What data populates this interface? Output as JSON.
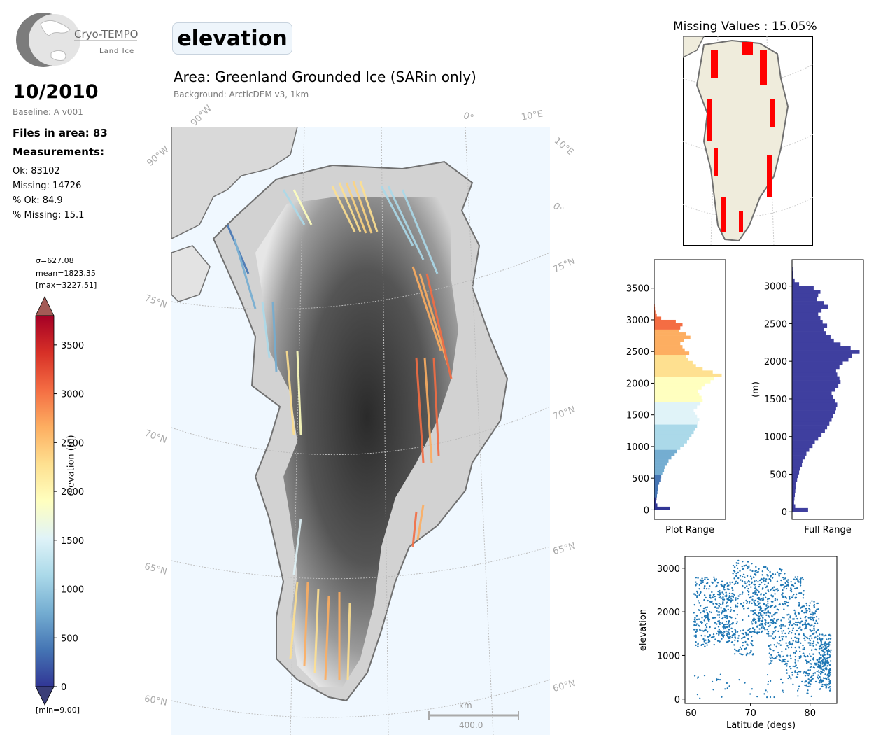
{
  "logo": {
    "name": "Cryo-TEMPO",
    "subtitle": "Land Ice"
  },
  "header": {
    "date": "10/2010",
    "baseline": "Baseline: A v001",
    "files": "Files in area: 83",
    "measurements_title": "Measurements:",
    "ok": "Ok: 83102",
    "missing": "Missing: 14726",
    "pct_ok": "% Ok: 84.9",
    "pct_missing": "% Missing: 15.1"
  },
  "main": {
    "parameter": "elevation",
    "area": "Area: Greenland Grounded Ice (SARin only)",
    "background": "Background: ArcticDEM v3, 1km",
    "scalebar": {
      "unit": "km",
      "length_label": "400.0"
    },
    "lat_labels": [
      "75°N",
      "70°N",
      "65°N",
      "60°N"
    ],
    "lon_labels_top": [
      "90°W",
      "0°",
      "10°E"
    ],
    "lon_labels_left": [
      "90°W"
    ],
    "lon_labels_right": [
      "10°E",
      "0°"
    ],
    "lat_labels_right": [
      "75°N",
      "70°N",
      "65°N",
      "60°N"
    ]
  },
  "colorbar": {
    "sigma": "σ=627.08",
    "mean": "mean=1823.35",
    "max": "[max=3227.51]",
    "min": "[min=9.00]",
    "label": "elevation (m)",
    "ticks": [
      "3500",
      "3000",
      "2500",
      "2000",
      "1500",
      "1000",
      "500",
      "0"
    ],
    "colors": [
      "#313695",
      "#4575b4",
      "#74add1",
      "#abd9e9",
      "#e0f3f8",
      "#ffffbf",
      "#fee090",
      "#fdae61",
      "#f46d43",
      "#d73027",
      "#a50026"
    ]
  },
  "inset": {
    "title": "Missing Values : 15.05%",
    "missing_color": "#ff0000",
    "land_color": "#efecdc"
  },
  "chart_data": [
    {
      "type": "bar",
      "orientation": "horizontal",
      "xlabel": "Plot Range",
      "ylabel": "",
      "ylim": [
        -150,
        3950
      ],
      "yticks": [
        0,
        500,
        1000,
        1500,
        2000,
        2500,
        3000,
        3500
      ],
      "bin_centers": [
        25,
        75,
        125,
        175,
        225,
        275,
        325,
        375,
        425,
        475,
        525,
        575,
        625,
        675,
        725,
        775,
        825,
        875,
        925,
        975,
        1025,
        1075,
        1125,
        1175,
        1225,
        1275,
        1325,
        1375,
        1425,
        1475,
        1525,
        1575,
        1625,
        1675,
        1725,
        1775,
        1825,
        1875,
        1925,
        1975,
        2025,
        2075,
        2125,
        2175,
        2225,
        2275,
        2325,
        2375,
        2425,
        2475,
        2525,
        2575,
        2625,
        2675,
        2725,
        2775,
        2825,
        2875,
        2925,
        2975,
        3025,
        3075,
        3125,
        3175,
        3225
      ],
      "counts": [
        1400,
        250,
        150,
        180,
        220,
        260,
        300,
        340,
        420,
        520,
        600,
        700,
        850,
        900,
        1100,
        1250,
        1500,
        1800,
        2000,
        2300,
        2600,
        2900,
        3100,
        3300,
        3500,
        3600,
        3800,
        3900,
        4000,
        3800,
        3600,
        3500,
        3800,
        4100,
        4300,
        4200,
        4000,
        3900,
        4200,
        4500,
        5000,
        5300,
        6000,
        5200,
        4300,
        3700,
        3400,
        3000,
        2800,
        3100,
        2700,
        2500,
        2300,
        2600,
        3200,
        2800,
        2200,
        2300,
        2500,
        1900,
        600,
        200,
        80,
        40,
        20
      ]
    },
    {
      "type": "bar",
      "orientation": "horizontal",
      "xlabel": "Full Range",
      "ylabel": "(m)",
      "ylim": [
        -100,
        3350
      ],
      "yticks": [
        0,
        500,
        1000,
        1500,
        2000,
        2500,
        3000
      ],
      "color": "#3f3f9f",
      "bin_centers": [
        25,
        75,
        125,
        175,
        225,
        275,
        325,
        375,
        425,
        475,
        525,
        575,
        625,
        675,
        725,
        775,
        825,
        875,
        925,
        975,
        1025,
        1075,
        1125,
        1175,
        1225,
        1275,
        1325,
        1375,
        1425,
        1475,
        1525,
        1575,
        1625,
        1675,
        1725,
        1775,
        1825,
        1875,
        1925,
        1975,
        2025,
        2075,
        2125,
        2175,
        2225,
        2275,
        2325,
        2375,
        2425,
        2475,
        2525,
        2575,
        2625,
        2675,
        2725,
        2775,
        2825,
        2875,
        2925,
        2975,
        3025,
        3075,
        3125,
        3175,
        3225
      ],
      "counts": [
        1400,
        250,
        150,
        180,
        220,
        260,
        300,
        340,
        420,
        520,
        600,
        700,
        850,
        900,
        1100,
        1250,
        1500,
        1800,
        2000,
        2300,
        2600,
        2900,
        3100,
        3300,
        3500,
        3600,
        3800,
        3900,
        4000,
        3800,
        3600,
        3500,
        3800,
        4100,
        4300,
        4200,
        4000,
        3900,
        4200,
        4500,
        5000,
        5300,
        6000,
        5200,
        4300,
        3700,
        3400,
        3000,
        2800,
        3100,
        2700,
        2500,
        2300,
        2600,
        3200,
        2800,
        2200,
        2300,
        2500,
        1900,
        600,
        200,
        80,
        40,
        20
      ]
    },
    {
      "type": "scatter",
      "xlabel": "Latitude (degs)",
      "ylabel": "elevation",
      "xlim": [
        59,
        84.5
      ],
      "ylim": [
        -100,
        3270
      ],
      "xticks": [
        60,
        70,
        80
      ],
      "yticks": [
        0,
        1000,
        2000,
        3000
      ],
      "color": "#1f77b4",
      "bands": [
        {
          "x0": 60.5,
          "x1": 64.5,
          "ylow": 1200,
          "yhigh": 2800
        },
        {
          "x0": 64.5,
          "x1": 67.0,
          "ylow": 1300,
          "yhigh": 2700
        },
        {
          "x0": 67.0,
          "x1": 70.5,
          "ylow": 1000,
          "yhigh": 3200
        },
        {
          "x0": 70.5,
          "x1": 73.0,
          "ylow": 1500,
          "yhigh": 3050
        },
        {
          "x0": 73.0,
          "x1": 76.0,
          "ylow": 800,
          "yhigh": 3000
        },
        {
          "x0": 76.0,
          "x1": 79.0,
          "ylow": 500,
          "yhigh": 2800
        },
        {
          "x0": 79.0,
          "x1": 81.5,
          "ylow": 300,
          "yhigh": 2250
        },
        {
          "x0": 81.5,
          "x1": 83.5,
          "ylow": 200,
          "yhigh": 1500
        }
      ],
      "outlier_range": [
        0,
        600
      ]
    }
  ]
}
